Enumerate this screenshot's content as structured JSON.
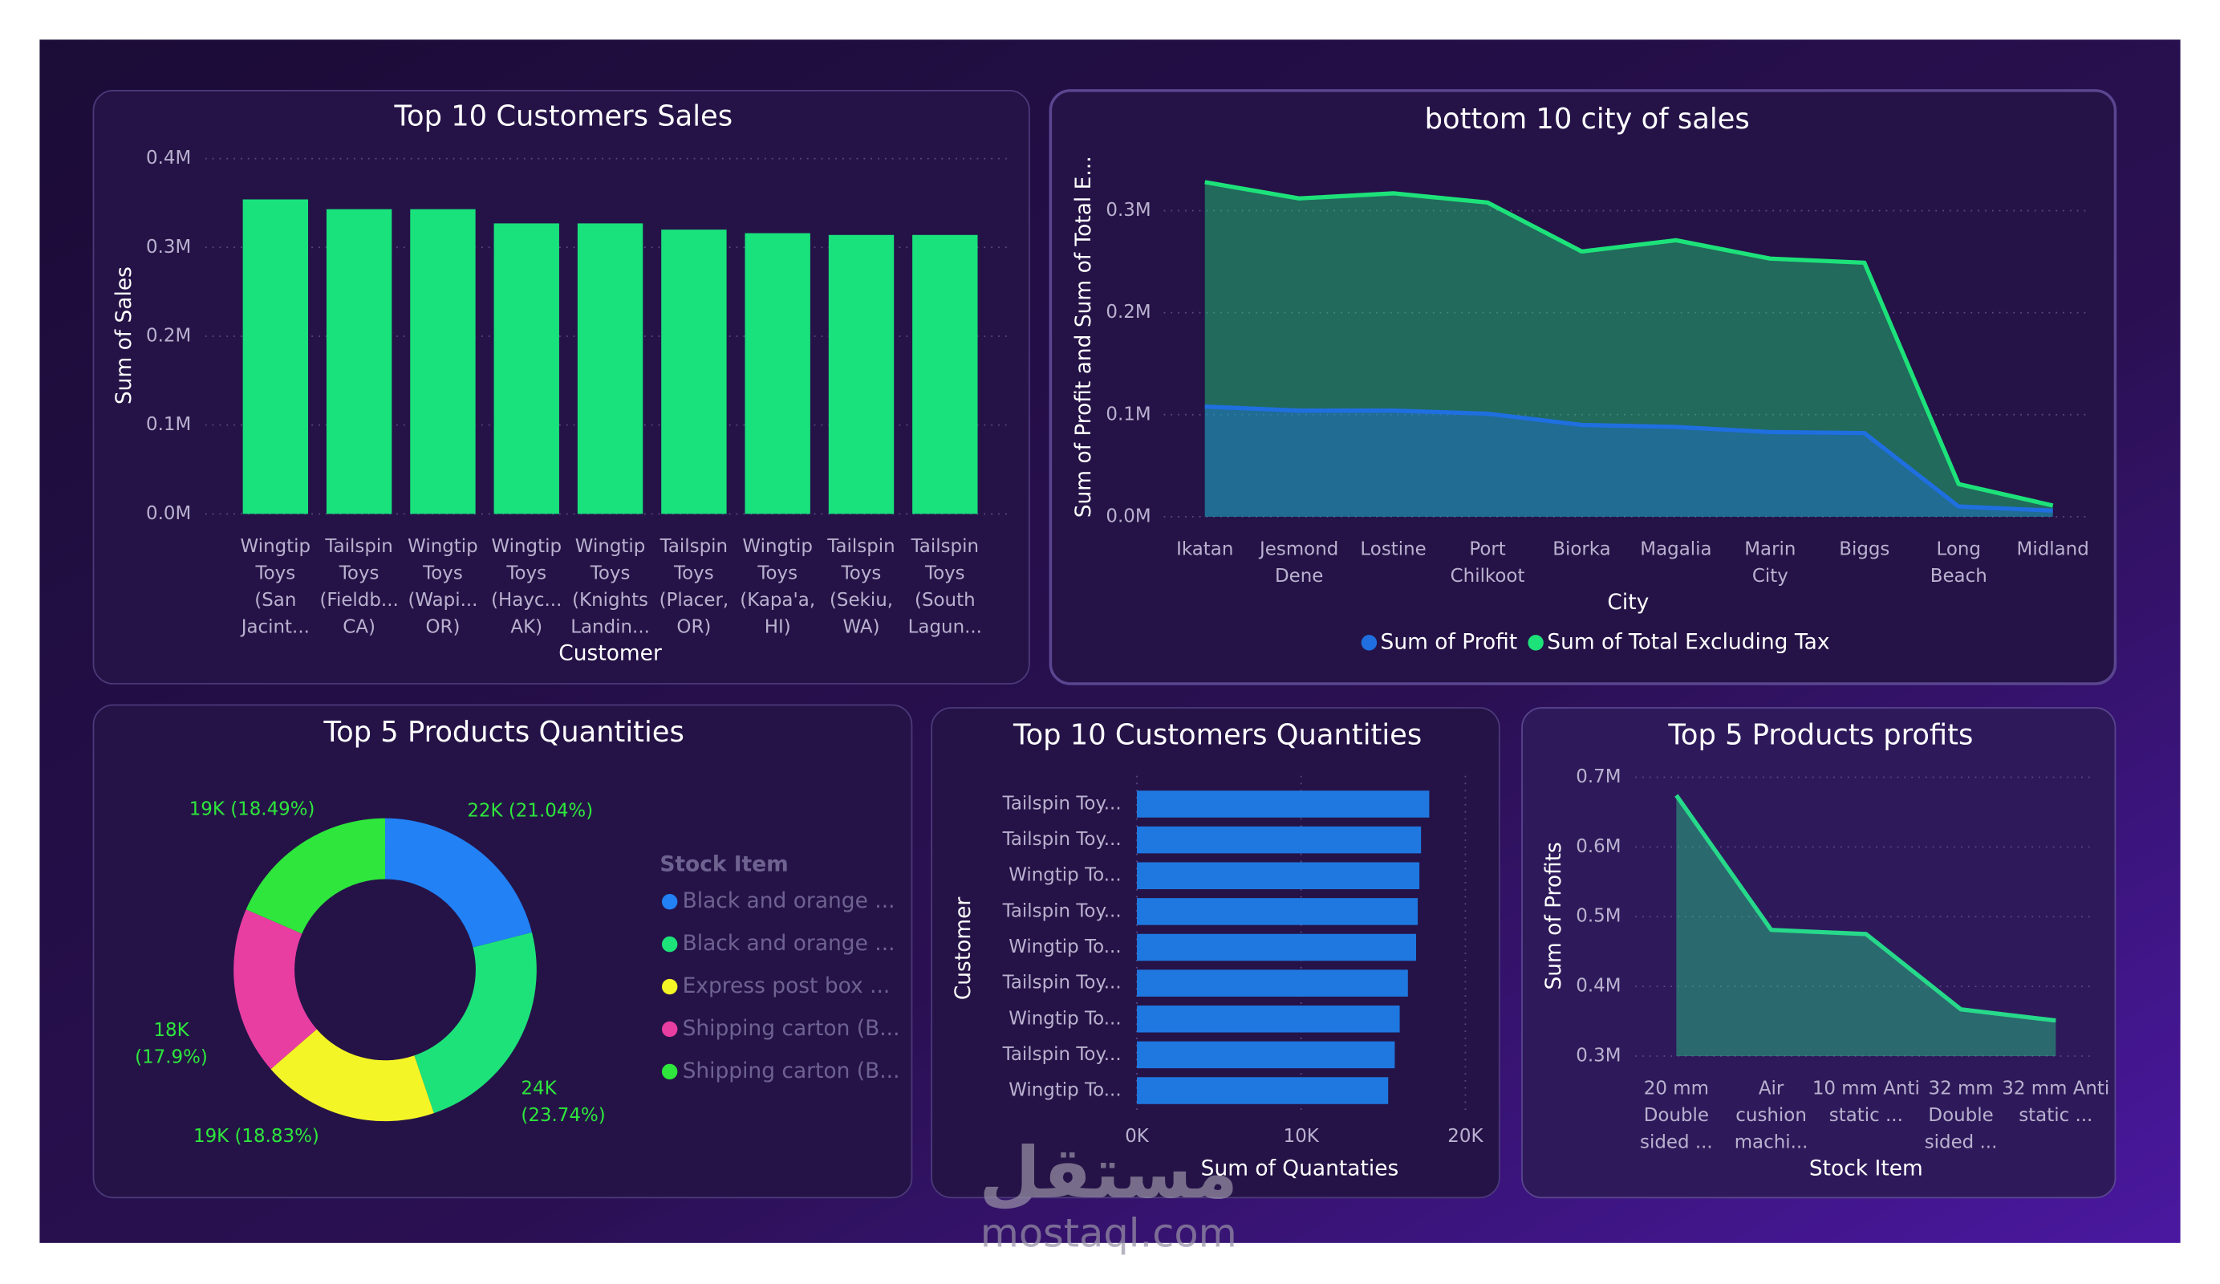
{
  "watermark": {
    "arabic": "مستقل",
    "latin": "mostaql.com"
  },
  "chart_data": [
    {
      "type": "bar",
      "title": "Top 10 Customers Sales",
      "x_label": "Customer",
      "y_label": "Sum of Sales",
      "categories": [
        "Wingtip Toys (San Jacint...",
        "Tailspin Toys (Fieldb... CA)",
        "Wingtip Toys (Wapi... OR)",
        "Wingtip Toys (Hayc... AK)",
        "Wingtip Toys (Knights Landin...",
        "Tailspin Toys (Placer, OR)",
        "Wingtip Toys (Kapa'a, HI)",
        "Tailspin Toys (Sekiu, WA)",
        "Tailspin Toys (South Lagun..."
      ],
      "values": [
        354000,
        343000,
        343000,
        327000,
        327000,
        320000,
        316000,
        314000,
        314000
      ],
      "color": "#19e27d",
      "ylim": [
        0,
        400000
      ],
      "yticks": [
        {
          "value": 0,
          "label": "0.0M"
        },
        {
          "value": 100000,
          "label": "0.1M"
        },
        {
          "value": 200000,
          "label": "0.2M"
        },
        {
          "value": 300000,
          "label": "0.3M"
        },
        {
          "value": 400000,
          "label": "0.4M"
        }
      ],
      "grid": true
    },
    {
      "type": "area",
      "title": "bottom 10 city of sales",
      "x_label": "City",
      "y_label": "Sum of Profit and Sum of Total E...",
      "categories": [
        "Ikatan",
        "Jesmond Dene",
        "Lostine",
        "Port Chilkoot",
        "Biorka",
        "Magalia",
        "Marin City",
        "Biggs",
        "Long Beach",
        "Midland"
      ],
      "series": [
        {
          "name": "Sum of Profit",
          "color": "#1f6fe0",
          "values": [
            108000,
            104000,
            104000,
            101000,
            90000,
            88000,
            83000,
            82000,
            10000,
            6000
          ]
        },
        {
          "name": "Sum of Total Excluding Tax",
          "color": "#1de27a",
          "values": [
            328000,
            312000,
            317000,
            308000,
            260000,
            271000,
            253000,
            249000,
            32000,
            11000
          ]
        }
      ],
      "ylim": [
        0,
        340000
      ],
      "yticks": [
        {
          "value": 0,
          "label": "0.0M"
        },
        {
          "value": 100000,
          "label": "0.1M"
        },
        {
          "value": 200000,
          "label": "0.2M"
        },
        {
          "value": 300000,
          "label": "0.3M"
        }
      ],
      "grid": true,
      "legend": "bottom"
    },
    {
      "type": "donut",
      "title": "Top 5 Products Quantities",
      "legend_title": "Stock Item",
      "categories": [
        "Black and orange ...",
        "Black and orange ...",
        "Express post box ...",
        "Shipping carton (B...",
        "Shipping carton (B..."
      ],
      "values": [
        21.04,
        23.74,
        18.83,
        17.9,
        18.49
      ],
      "value_labels": [
        "22K (21.04%)",
        "24K (23.74%)",
        "19K (18.83%)",
        "18K (17.9%)",
        "19K (18.49%)"
      ],
      "colors": [
        "#2181f5",
        "#1de27a",
        "#f4f526",
        "#e83ea2",
        "#2ee63c"
      ],
      "legend": "right"
    },
    {
      "type": "hbar",
      "title": "Top 10 Customers Quantities",
      "x_label": "Sum of Quantaties",
      "y_label": "Customer",
      "categories": [
        "Tailspin Toy...",
        "Tailspin Toy...",
        "Wingtip To...",
        "Tailspin Toy...",
        "Wingtip To...",
        "Tailspin Toy...",
        "Wingtip To...",
        "Tailspin Toy...",
        "Wingtip To..."
      ],
      "values": [
        17800,
        17300,
        17200,
        17100,
        17000,
        16500,
        16000,
        15700,
        15300
      ],
      "color": "#1f78e0",
      "xlim": [
        0,
        20000
      ],
      "xticks": [
        {
          "value": 0,
          "label": "0K"
        },
        {
          "value": 10000,
          "label": "10K"
        },
        {
          "value": 20000,
          "label": "20K"
        }
      ],
      "grid": true
    },
    {
      "type": "area",
      "title": "Top 5 Products profits",
      "x_label": "Stock Item",
      "y_label": "Sum of Profits",
      "categories": [
        "20 mm Double sided ...",
        "Air cushion machi...",
        "10 mm Anti static ...",
        "32 mm Double sided ...",
        "32 mm Anti static ..."
      ],
      "values": [
        674000,
        481000,
        475000,
        367000,
        351000
      ],
      "color": "#27d98a",
      "ylim": [
        300000,
        700000
      ],
      "yticks": [
        {
          "value": 300000,
          "label": "0.3M"
        },
        {
          "value": 400000,
          "label": "0.4M"
        },
        {
          "value": 500000,
          "label": "0.5M"
        },
        {
          "value": 600000,
          "label": "0.6M"
        },
        {
          "value": 700000,
          "label": "0.7M"
        }
      ],
      "grid": true
    }
  ]
}
